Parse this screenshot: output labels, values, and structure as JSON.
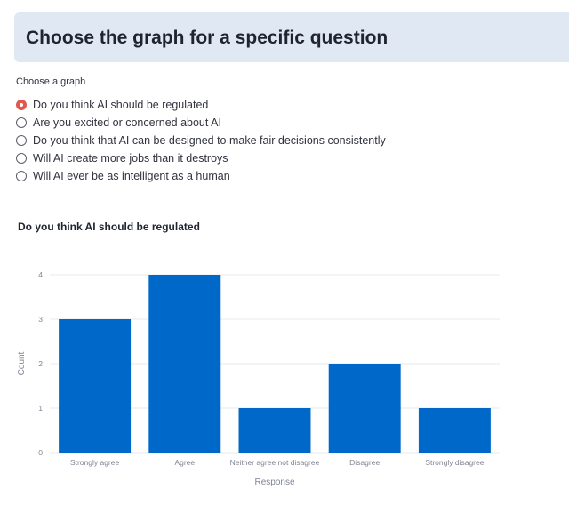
{
  "header": {
    "title": "Choose the graph for a specific question"
  },
  "graph_selector": {
    "label": "Choose a graph",
    "selected_index": 0,
    "options": [
      "Do you think AI should be regulated",
      "Are you excited or concerned about AI",
      "Do you think that AI can be designed to make fair decisions consistently",
      "Will AI create more jobs than it destroys",
      "Will AI ever be as intelligent as a human"
    ]
  },
  "colors": {
    "accent": "#e0594e",
    "bar": "#0068c9",
    "header_bg": "#dfe8f3"
  },
  "chart_data": {
    "type": "bar",
    "title": "Do you think AI should be regulated",
    "categories": [
      "Strongly agree",
      "Agree",
      "Neither agree not disagree",
      "Disagree",
      "Strongly disagree"
    ],
    "values": [
      3,
      4,
      1,
      2,
      1
    ],
    "xlabel": "Response",
    "ylabel": "Count",
    "ylim": [
      0,
      4
    ],
    "yticks": [
      "0",
      "1",
      "2",
      "3",
      "4"
    ],
    "grid": true
  }
}
